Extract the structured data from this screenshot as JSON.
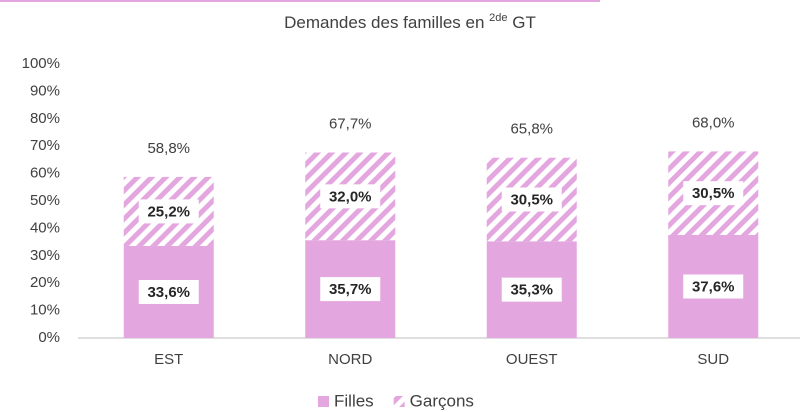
{
  "chart_data": {
    "type": "stacked_bar",
    "title_parts": [
      "Demandes des familles en",
      "2de",
      "GT"
    ],
    "categories": [
      "EST",
      "NORD",
      "OUEST",
      "SUD"
    ],
    "series": [
      {
        "name": "Filles",
        "color": "#e3a6df",
        "values": [
          33.6,
          35.7,
          35.3,
          37.6
        ],
        "value_labels": [
          "33,6%",
          "35,7%",
          "35,3%",
          "37,6%"
        ]
      },
      {
        "name": "Garçons",
        "color": "#e3a6df",
        "pattern": "hatch",
        "values": [
          25.2,
          32.0,
          30.5,
          30.5
        ],
        "value_labels": [
          "25,2%",
          "32,0%",
          "30,5%",
          "30,5%"
        ]
      }
    ],
    "totals": [
      58.8,
      67.7,
      65.8,
      68.0
    ],
    "total_labels": [
      "58,8%",
      "67,7%",
      "65,8%",
      "68,0%"
    ],
    "ylim": [
      0,
      100
    ],
    "yticks": [
      {
        "value": 0,
        "label": "0%"
      },
      {
        "value": 10,
        "label": "10%"
      },
      {
        "value": 20,
        "label": "20%"
      },
      {
        "value": 30,
        "label": "30%"
      },
      {
        "value": 40,
        "label": "40%"
      },
      {
        "value": 50,
        "label": "50%"
      },
      {
        "value": 60,
        "label": "60%"
      },
      {
        "value": 70,
        "label": "70%"
      },
      {
        "value": 80,
        "label": "80%"
      },
      {
        "value": 90,
        "label": "90%"
      },
      {
        "value": 100,
        "label": "100%"
      }
    ],
    "grid": false,
    "legend": "bottom"
  }
}
